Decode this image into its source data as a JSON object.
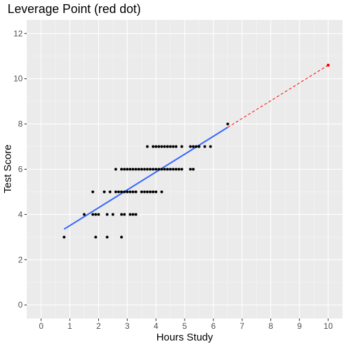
{
  "chart_data": {
    "type": "scatter",
    "title": "Leverage Point (red dot)",
    "xlabel": "Hours Study",
    "ylabel": "Test Score",
    "xlim": [
      -0.5,
      10.5
    ],
    "ylim": [
      -0.6,
      12.6
    ],
    "x_ticks": [
      "0",
      "1",
      "2",
      "3",
      "4",
      "5",
      "6",
      "7",
      "8",
      "9",
      "10"
    ],
    "y_ticks": [
      "0",
      "2",
      "4",
      "6",
      "8",
      "10",
      "12"
    ],
    "grid": true,
    "legend": "none",
    "colors": {
      "panel": "#ebebeb",
      "grid_major": "#ffffff",
      "points": "#000000",
      "fit_line": "#3366ff",
      "leverage": "#ff0000"
    },
    "points": [
      [
        0.8,
        3.0
      ],
      [
        1.5,
        4.0
      ],
      [
        1.8,
        5.0
      ],
      [
        1.8,
        4.0
      ],
      [
        1.9,
        4.0
      ],
      [
        1.9,
        3.0
      ],
      [
        2.0,
        4.0
      ],
      [
        2.2,
        5.0
      ],
      [
        2.3,
        4.0
      ],
      [
        2.3,
        3.0
      ],
      [
        2.4,
        5.0
      ],
      [
        2.5,
        4.0
      ],
      [
        2.6,
        6.0
      ],
      [
        2.6,
        5.0
      ],
      [
        2.7,
        5.0
      ],
      [
        2.8,
        6.0
      ],
      [
        2.8,
        5.0
      ],
      [
        2.8,
        4.0
      ],
      [
        2.8,
        3.0
      ],
      [
        2.9,
        6.0
      ],
      [
        2.9,
        5.0
      ],
      [
        2.9,
        4.0
      ],
      [
        3.0,
        6.0
      ],
      [
        3.0,
        5.0
      ],
      [
        3.1,
        6.0
      ],
      [
        3.1,
        5.0
      ],
      [
        3.1,
        4.0
      ],
      [
        3.2,
        6.0
      ],
      [
        3.2,
        5.0
      ],
      [
        3.2,
        4.0
      ],
      [
        3.3,
        6.0
      ],
      [
        3.3,
        5.0
      ],
      [
        3.3,
        4.0
      ],
      [
        3.4,
        6.0
      ],
      [
        3.5,
        6.0
      ],
      [
        3.5,
        5.0
      ],
      [
        3.6,
        6.0
      ],
      [
        3.6,
        5.0
      ],
      [
        3.7,
        7.0
      ],
      [
        3.7,
        6.0
      ],
      [
        3.7,
        5.0
      ],
      [
        3.8,
        6.0
      ],
      [
        3.8,
        5.0
      ],
      [
        3.9,
        7.0
      ],
      [
        3.9,
        6.0
      ],
      [
        3.9,
        5.0
      ],
      [
        4.0,
        7.0
      ],
      [
        4.0,
        6.0
      ],
      [
        4.0,
        5.0
      ],
      [
        4.1,
        7.0
      ],
      [
        4.1,
        6.0
      ],
      [
        4.2,
        7.0
      ],
      [
        4.2,
        6.0
      ],
      [
        4.2,
        5.0
      ],
      [
        4.3,
        7.0
      ],
      [
        4.3,
        6.0
      ],
      [
        4.4,
        7.0
      ],
      [
        4.4,
        6.0
      ],
      [
        4.5,
        7.0
      ],
      [
        4.5,
        6.0
      ],
      [
        4.6,
        7.0
      ],
      [
        4.6,
        6.0
      ],
      [
        4.7,
        7.0
      ],
      [
        4.7,
        6.0
      ],
      [
        4.8,
        6.0
      ],
      [
        4.9,
        7.0
      ],
      [
        4.9,
        6.0
      ],
      [
        5.2,
        7.0
      ],
      [
        5.2,
        6.0
      ],
      [
        5.3,
        7.0
      ],
      [
        5.3,
        6.0
      ],
      [
        5.4,
        7.0
      ],
      [
        5.5,
        7.0
      ],
      [
        5.7,
        7.0
      ],
      [
        5.9,
        7.0
      ],
      [
        6.5,
        8.0
      ]
    ],
    "leverage_point": [
      10.0,
      10.6
    ],
    "fit_line": {
      "x": [
        0.8,
        6.5
      ],
      "y": [
        3.35,
        7.85
      ]
    },
    "leverage_fit_line": {
      "x": [
        6.5,
        10.0
      ],
      "y": [
        7.85,
        10.6
      ]
    }
  }
}
